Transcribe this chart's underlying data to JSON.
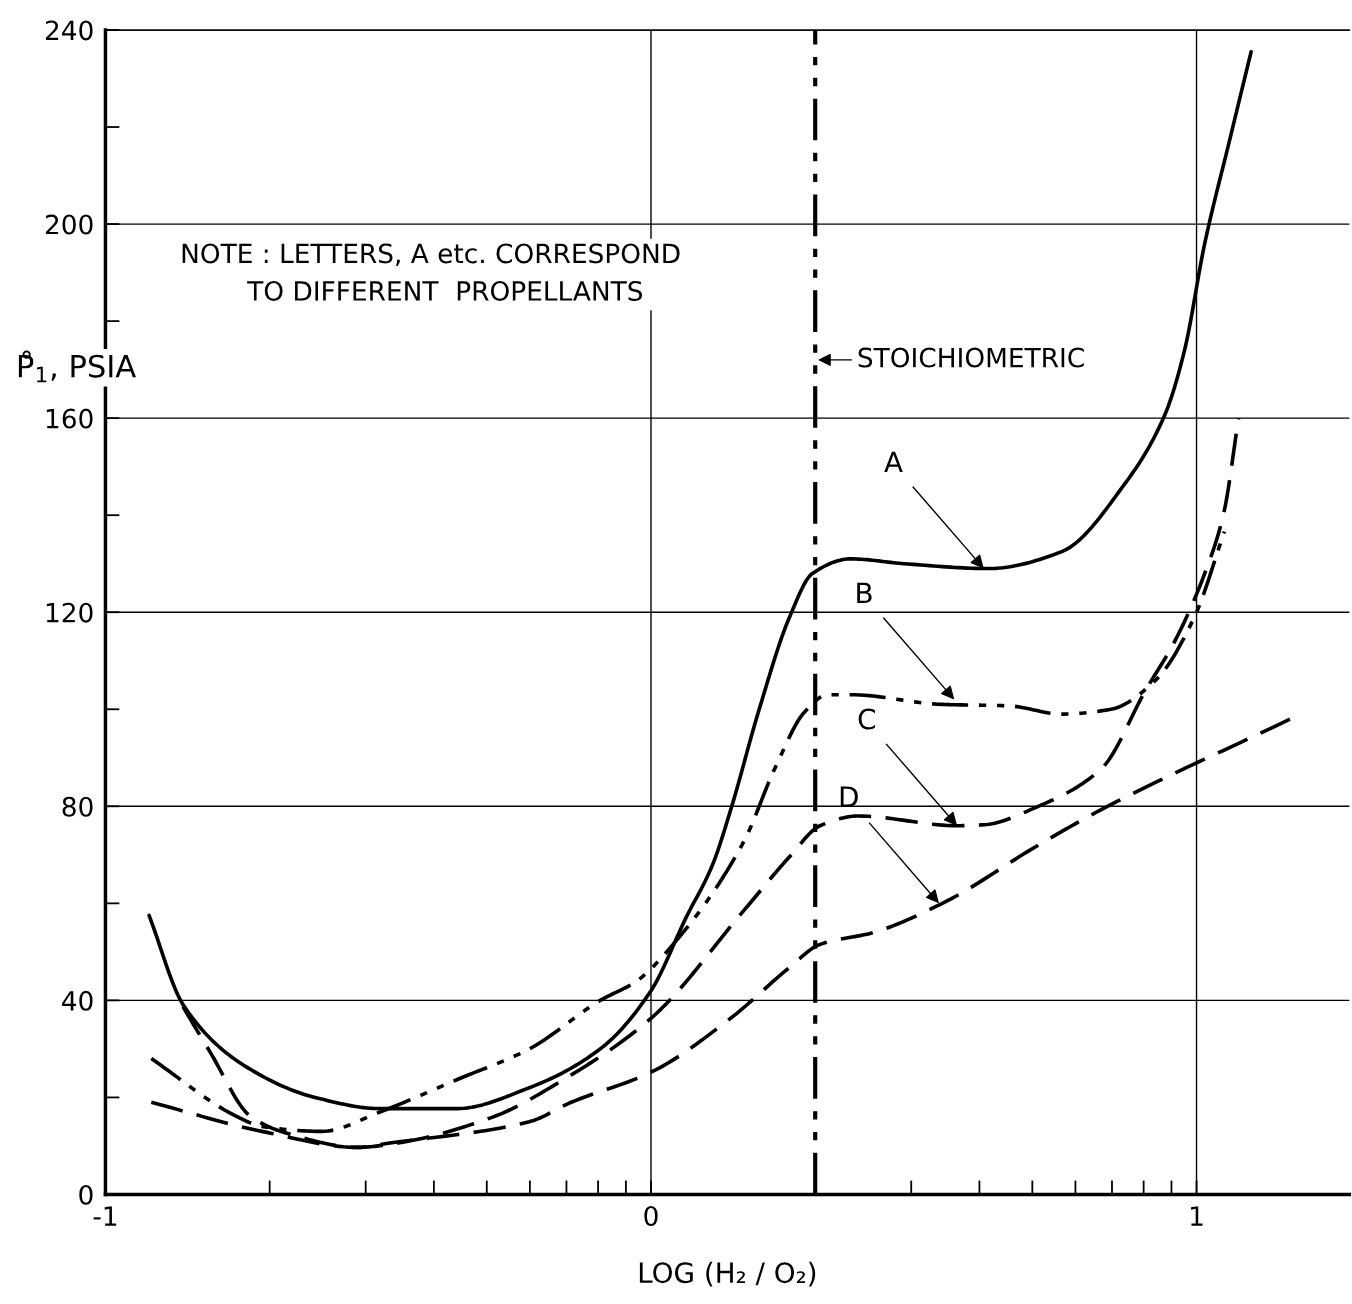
{
  "chart_data": {
    "type": "line",
    "xlabel": "LOG (H₂ / O₂)",
    "ylabel": "P̊$_{1}$, PSIA",
    "xlim": [
      -1,
      1.28
    ],
    "ylim": [
      0,
      240
    ],
    "xticks": [
      -1,
      {
        "value": -0.699,
        "label": null
      },
      {
        "value": -0.523,
        "label": null
      },
      {
        "value": -0.398,
        "label": null
      },
      {
        "value": -0.301,
        "label": null
      },
      {
        "value": -0.222,
        "label": null
      },
      {
        "value": -0.155,
        "label": null
      },
      {
        "value": -0.097,
        "label": null
      },
      {
        "value": -0.046,
        "label": null
      },
      0,
      {
        "value": 0.301,
        "label": null
      },
      {
        "value": 0.477,
        "label": null
      },
      {
        "value": 0.602,
        "label": null
      },
      {
        "value": 0.699,
        "label": null
      },
      {
        "value": 0.778,
        "label": null
      },
      {
        "value": 0.845,
        "label": null
      },
      {
        "value": 0.903,
        "label": null
      },
      {
        "value": 0.954,
        "label": null
      },
      1
    ],
    "yticks": [
      0,
      {
        "value": 20,
        "label": null
      },
      40,
      {
        "value": 60,
        "label": null
      },
      80,
      {
        "value": 100,
        "label": null
      },
      120,
      {
        "value": 140,
        "label": null
      },
      160,
      {
        "value": 180,
        "label": null
      },
      200,
      {
        "value": 220,
        "label": null
      },
      240
    ],
    "grid": true,
    "marker": "none",
    "series": [
      {
        "color": "#000000",
        "line_style": "solid",
        "x": [
          -0.92,
          -0.857,
          -0.746,
          -0.616,
          -0.497,
          -0.355,
          -0.223,
          -0.093,
          0.0,
          0.064,
          0.113,
          0.148,
          0.197,
          0.254,
          0.296,
          0.366,
          0.464,
          0.618,
          0.753,
          0.87,
          0.943,
          0.978,
          1.015,
          1.06,
          1.1
        ],
        "values": [
          57.5,
          39,
          26.6,
          20,
          17.7,
          17.7,
          22,
          30,
          42,
          57,
          68,
          80,
          99.5,
          119,
          128,
          131,
          130,
          129,
          132.5,
          146.7,
          161,
          174,
          196,
          217,
          235.5
        ]
      },
      {
        "color": "#000000",
        "line_style": "dashdot",
        "x": [
          -0.916,
          -0.758,
          -0.713,
          -0.603,
          -0.497,
          -0.355,
          -0.223,
          -0.093,
          -0.026,
          0.044,
          0.17,
          0.227,
          0.282,
          0.324,
          0.366,
          0.534,
          0.656,
          0.753,
          0.843,
          0.925,
          0.996,
          1.051
        ],
        "values": [
          28,
          16,
          14,
          13,
          17,
          23.7,
          30,
          40,
          44,
          52,
          72.7,
          87.8,
          99.5,
          103,
          103,
          101,
          100.7,
          99,
          100,
          106,
          119,
          136.6
        ]
      },
      {
        "color": "#000000",
        "line_style": "dashed",
        "x": [
          -0.858,
          -0.81,
          -0.733,
          -0.664,
          -0.537,
          -0.47,
          -0.289,
          -0.16,
          0.002,
          0.17,
          0.254,
          0.31,
          0.38,
          0.561,
          0.61,
          0.71,
          0.826,
          0.907,
          0.96,
          1.015,
          1.05,
          1.077
        ],
        "values": [
          38.7,
          29.7,
          16,
          12.5,
          9.7,
          10.5,
          16,
          23.7,
          36.5,
          58.5,
          69.6,
          76,
          78,
          76,
          76.2,
          80,
          87.8,
          104,
          114,
          128,
          140.5,
          160
        ]
      },
      {
        "color": "#000000",
        "line_style": "dashed",
        "x": [
          -0.916,
          -0.713,
          -0.537,
          -0.485,
          -0.223,
          -0.146,
          0.002,
          0.148,
          0.254,
          0.309,
          0.408,
          0.534,
          0.71,
          0.82,
          1.172
        ],
        "values": [
          19,
          13,
          9.7,
          10.5,
          15,
          19,
          25.3,
          36.5,
          46.8,
          51.5,
          54,
          60,
          72,
          79,
          98
        ]
      }
    ],
    "ref_lines": [
      {
        "axis": "x",
        "value": 0.301,
        "label": "STOICHIOMETRIC",
        "color": "#000000",
        "line_style": "dashdot"
      }
    ],
    "annotations": [
      {
        "text": "A",
        "x": 0.61,
        "y": 129
      },
      {
        "text": "B",
        "x": 0.556,
        "y": 102
      },
      {
        "text": "C",
        "x": 0.561,
        "y": 76
      },
      {
        "text": "D",
        "x": 0.528,
        "y": 60
      },
      "NOTE : LETTERS, A etc. CORRESPOND\n        TO DIFFERENT  PROPELLANTS"
    ]
  }
}
